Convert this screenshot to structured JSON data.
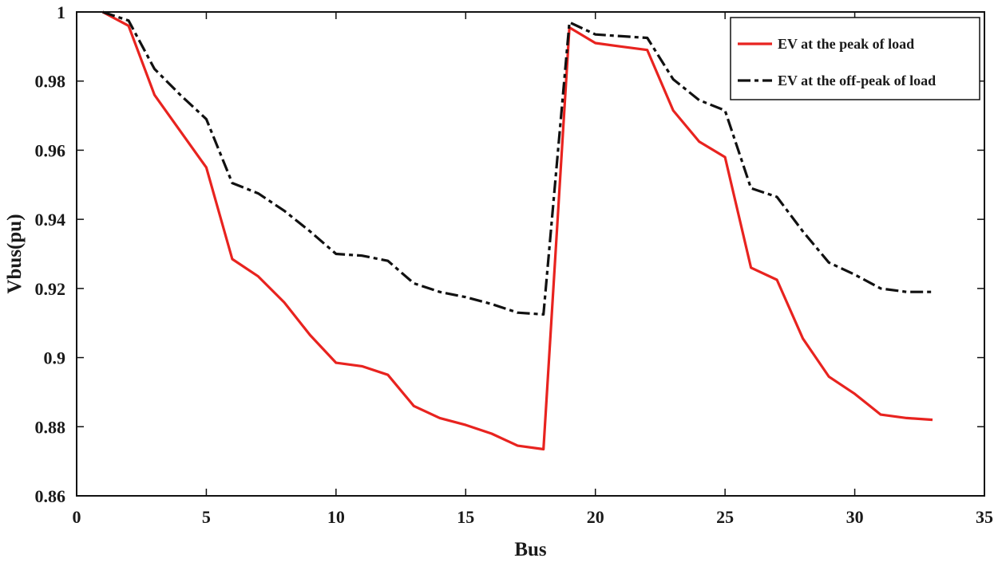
{
  "chart_data": {
    "type": "line",
    "xlabel": "Bus",
    "ylabel": "Vbus(pu)",
    "xlim": [
      0,
      35
    ],
    "ylim": [
      0.86,
      1.0
    ],
    "xticks": [
      0,
      5,
      10,
      15,
      20,
      25,
      30,
      35
    ],
    "yticks": [
      0.86,
      0.88,
      0.9,
      0.92,
      0.94,
      0.96,
      0.98,
      1
    ],
    "xtick_labels": [
      "0",
      "5",
      "10",
      "15",
      "20",
      "25",
      "30",
      "35"
    ],
    "ytick_labels": [
      "0.86",
      "0.88",
      "0.9",
      "0.92",
      "0.94",
      "0.96",
      "0.98",
      "1"
    ],
    "grid": false,
    "legend_position": "top-right",
    "x": [
      1,
      2,
      3,
      4,
      5,
      6,
      7,
      8,
      9,
      10,
      11,
      12,
      13,
      14,
      15,
      16,
      17,
      18,
      19,
      20,
      21,
      22,
      23,
      24,
      25,
      26,
      27,
      28,
      29,
      30,
      31,
      32,
      33
    ],
    "series": [
      {
        "name": "EV at the peak of load",
        "color": "#e8231f",
        "style": "solid",
        "values": [
          1.0,
          0.996,
          0.976,
          0.9655,
          0.955,
          0.9285,
          0.9235,
          0.916,
          0.9065,
          0.8985,
          0.8975,
          0.895,
          0.886,
          0.8825,
          0.8805,
          0.878,
          0.8745,
          0.8735,
          0.9955,
          0.991,
          0.99,
          0.989,
          0.9715,
          0.9625,
          0.958,
          0.926,
          0.9225,
          0.9055,
          0.8945,
          0.8895,
          0.8835,
          0.8825,
          0.882
        ]
      },
      {
        "name": "EV at the off-peak of load",
        "color": "#111111",
        "style": "dashdot",
        "values": [
          1.0,
          0.9975,
          0.9835,
          0.976,
          0.969,
          0.9505,
          0.9475,
          0.9425,
          0.9365,
          0.93,
          0.9295,
          0.928,
          0.9215,
          0.919,
          0.9175,
          0.9155,
          0.913,
          0.9125,
          0.997,
          0.9935,
          0.993,
          0.9925,
          0.9805,
          0.9745,
          0.9715,
          0.949,
          0.9465,
          0.9365,
          0.9275,
          0.924,
          0.92,
          0.919,
          0.919
        ]
      }
    ]
  }
}
